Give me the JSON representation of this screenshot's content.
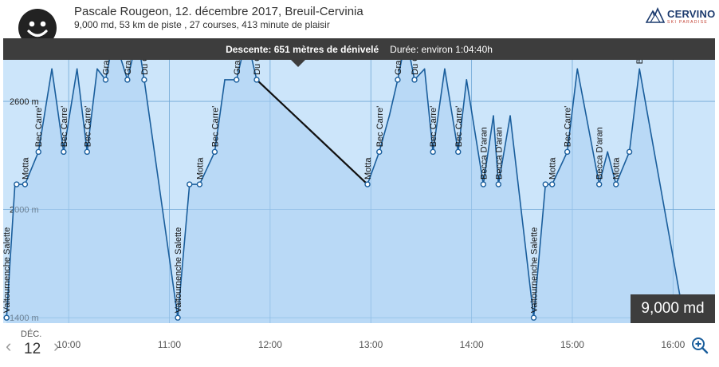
{
  "header": {
    "title": "Pascale Rougeon, 12. décembre 2017, Breuil-Cervinia",
    "subtitle": "9,000 md, 53 km de piste , 27 courses, 413 minute de plaisir",
    "avatar_icon": "smiley-face-icon",
    "logo": {
      "name": "CERVINO",
      "tagline": "SKI PARADISE"
    }
  },
  "infobar": {
    "descent": "Descente: 651 mètres de dénivelé",
    "duration": "Durée: environ 1:04:40h"
  },
  "badge": "9,000 md",
  "timeline": {
    "month": "DÉC.",
    "day": "12",
    "prev_icon": "chevron-left-icon",
    "next_icon": "chevron-right-icon",
    "zoom_icon": "zoom-in-icon",
    "time_labels": [
      "10:00",
      "11:00",
      "12:00",
      "13:00",
      "14:00",
      "15:00",
      "16:00"
    ]
  },
  "colors": {
    "chart_bg": "#cce5fa",
    "line": "#1a5e9c",
    "highlight": "#111111",
    "bar": "#3d3d3d",
    "grid": "#6fa7d6"
  },
  "chart_data": {
    "type": "line",
    "xlabel": "",
    "ylabel": "",
    "yticks": [
      "1400 m",
      "2000 m",
      "2600 m"
    ],
    "yticks_values": [
      1400,
      2000,
      2600
    ],
    "ylim": [
      1370,
      2950
    ],
    "xlim": [
      "09:21",
      "16:25"
    ],
    "xticks": [
      "10:00",
      "11:00",
      "12:00",
      "13:00",
      "14:00",
      "15:00",
      "16:00"
    ],
    "grid": true,
    "highlighted_segment": {
      "from": "11:52",
      "to": "12:58",
      "descent_m": 651
    },
    "points": [
      {
        "t": "09:23",
        "alt": 1400,
        "label": "Valtournenche Salette",
        "marker": true
      },
      {
        "t": "09:28",
        "alt": 2140,
        "label": "",
        "marker": false
      },
      {
        "t": "09:29",
        "alt": 2140,
        "label": "",
        "marker": true
      },
      {
        "t": "09:34",
        "alt": 2140,
        "label": "Motta",
        "marker": true
      },
      {
        "t": "09:42",
        "alt": 2320,
        "label": "Bec Carre'",
        "marker": true
      },
      {
        "t": "09:50",
        "alt": 2780,
        "label": "",
        "marker": false
      },
      {
        "t": "09:57",
        "alt": 2320,
        "label": "Bec Carre'",
        "marker": true
      },
      {
        "t": "10:05",
        "alt": 2780,
        "label": "",
        "marker": false
      },
      {
        "t": "10:11",
        "alt": 2320,
        "label": "Bec Carre'",
        "marker": true
      },
      {
        "t": "10:17",
        "alt": 2780,
        "label": "",
        "marker": false
      },
      {
        "t": "10:22",
        "alt": 2720,
        "label": "Gran Sometta",
        "marker": true
      },
      {
        "t": "10:27",
        "alt": 2960,
        "label": "",
        "marker": false
      },
      {
        "t": "10:35",
        "alt": 2720,
        "label": "Gran Sometta",
        "marker": true
      },
      {
        "t": "10:41",
        "alt": 2960,
        "label": "",
        "marker": false
      },
      {
        "t": "10:45",
        "alt": 2720,
        "label": "Du C",
        "marker": true
      },
      {
        "t": "11:05",
        "alt": 1400,
        "label": "Valtournenche Salette",
        "marker": true
      },
      {
        "t": "11:12",
        "alt": 2140,
        "label": "",
        "marker": true
      },
      {
        "t": "11:18",
        "alt": 2140,
        "label": "Motta",
        "marker": true
      },
      {
        "t": "11:27",
        "alt": 2320,
        "label": "Bec Carre'",
        "marker": true
      },
      {
        "t": "11:33",
        "alt": 2720,
        "label": "",
        "marker": false
      },
      {
        "t": "11:40",
        "alt": 2720,
        "label": "Gran Sometta",
        "marker": true
      },
      {
        "t": "11:46",
        "alt": 2960,
        "label": "",
        "marker": false
      },
      {
        "t": "11:52",
        "alt": 2720,
        "label": "Du C",
        "marker": true
      },
      {
        "t": "12:58",
        "alt": 2140,
        "label": "Motta",
        "marker": true
      },
      {
        "t": "13:05",
        "alt": 2320,
        "label": "Bec Carre'",
        "marker": true
      },
      {
        "t": "13:11",
        "alt": 2520,
        "label": "",
        "marker": false
      },
      {
        "t": "13:16",
        "alt": 2720,
        "label": "Gran Sometta",
        "marker": true
      },
      {
        "t": "13:21",
        "alt": 2960,
        "label": "",
        "marker": false
      },
      {
        "t": "13:26",
        "alt": 2720,
        "label": "Du C",
        "marker": true
      },
      {
        "t": "13:32",
        "alt": 2780,
        "label": "",
        "marker": false
      },
      {
        "t": "13:37",
        "alt": 2320,
        "label": "Bec Carre'",
        "marker": true
      },
      {
        "t": "13:44",
        "alt": 2780,
        "label": "",
        "marker": false
      },
      {
        "t": "13:52",
        "alt": 2320,
        "label": "Bec Carre'",
        "marker": true
      },
      {
        "t": "13:57",
        "alt": 2720,
        "label": "",
        "marker": false
      },
      {
        "t": "14:07",
        "alt": 2140,
        "label": "Becca D'aran",
        "marker": true
      },
      {
        "t": "14:13",
        "alt": 2520,
        "label": "",
        "marker": false
      },
      {
        "t": "14:16",
        "alt": 2140,
        "label": "Becca D'aran",
        "marker": true
      },
      {
        "t": "14:23",
        "alt": 2520,
        "label": "",
        "marker": false
      },
      {
        "t": "14:37",
        "alt": 1400,
        "label": "Valtournenche Salette",
        "marker": true
      },
      {
        "t": "14:44",
        "alt": 2140,
        "label": "",
        "marker": true
      },
      {
        "t": "14:48",
        "alt": 2140,
        "label": "Motta",
        "marker": true
      },
      {
        "t": "14:57",
        "alt": 2320,
        "label": "Bec Carre'",
        "marker": true
      },
      {
        "t": "15:03",
        "alt": 2780,
        "label": "",
        "marker": false
      },
      {
        "t": "15:16",
        "alt": 2140,
        "label": "Becca D'aran",
        "marker": true
      },
      {
        "t": "15:21",
        "alt": 2320,
        "label": "",
        "marker": false
      },
      {
        "t": "15:26",
        "alt": 2140,
        "label": "Motta",
        "marker": true
      },
      {
        "t": "15:34",
        "alt": 2320,
        "label": "",
        "marker": true
      },
      {
        "t": "15:40",
        "alt": 2780,
        "label": "Bec Carre'",
        "marker": false
      },
      {
        "t": "16:07",
        "alt": 1370,
        "label": "",
        "marker": false
      }
    ]
  }
}
